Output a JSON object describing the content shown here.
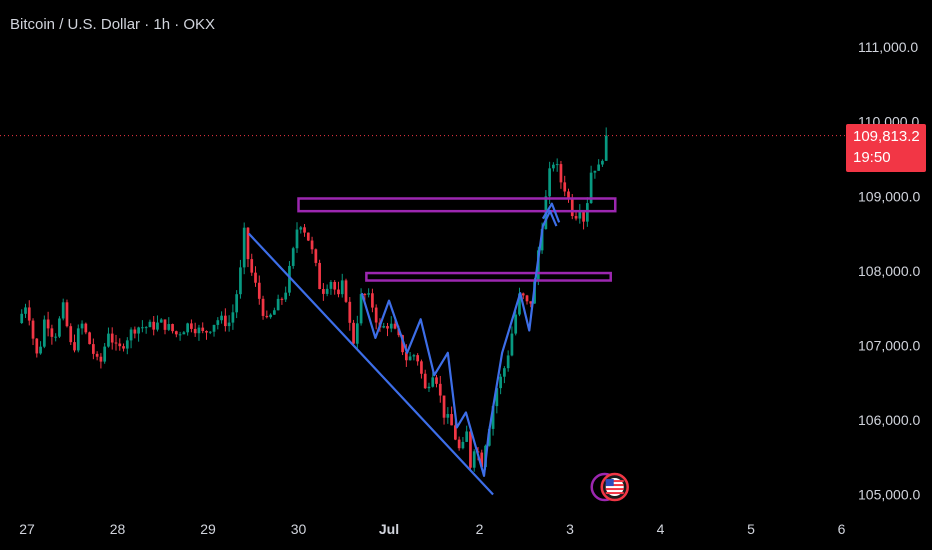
{
  "header": {
    "title": "Bitcoin / U.S. Dollar · 1h · OKX"
  },
  "price_label": {
    "price": "109,813.2",
    "countdown": "19:50"
  },
  "colors": {
    "background": "#000000",
    "up": "#089981",
    "down": "#f23645",
    "trendline": "#3d6ee8",
    "zone": "#9c27b0",
    "axis_text": "#d1d4dc"
  },
  "chart_data": {
    "type": "candlestick",
    "title": "Bitcoin / U.S. Dollar · 1h · OKX",
    "x_ticks": [
      {
        "label": "27",
        "day": 0
      },
      {
        "label": "28",
        "day": 1
      },
      {
        "label": "29",
        "day": 2
      },
      {
        "label": "30",
        "day": 3
      },
      {
        "label": "Jul",
        "day": 4
      },
      {
        "label": "2",
        "day": 5
      },
      {
        "label": "3",
        "day": 6
      },
      {
        "label": "4",
        "day": 7
      },
      {
        "label": "5",
        "day": 8
      },
      {
        "label": "6",
        "day": 9
      }
    ],
    "y_ticks": [
      {
        "label": "111,000.0",
        "value": 111000
      },
      {
        "label": "110,000.0",
        "value": 110000
      },
      {
        "label": "109,000.0",
        "value": 109000
      },
      {
        "label": "108,000.0",
        "value": 108000
      },
      {
        "label": "107,000.0",
        "value": 107000
      },
      {
        "label": "106,000.0",
        "value": 106000
      },
      {
        "label": "105,000.0",
        "value": 105000
      }
    ],
    "ylim": [
      104700,
      111500
    ],
    "last_price": 109813.2,
    "close_anchors": [
      [
        -0.1,
        107300
      ],
      [
        0.0,
        107600
      ],
      [
        0.05,
        107200
      ],
      [
        0.12,
        106800
      ],
      [
        0.2,
        107400
      ],
      [
        0.3,
        107100
      ],
      [
        0.4,
        107500
      ],
      [
        0.5,
        106900
      ],
      [
        0.6,
        107300
      ],
      [
        0.7,
        107000
      ],
      [
        0.8,
        106700
      ],
      [
        0.9,
        107200
      ],
      [
        1.0,
        106900
      ],
      [
        1.1,
        107100
      ],
      [
        1.2,
        107250
      ],
      [
        1.35,
        107250
      ],
      [
        1.5,
        107300
      ],
      [
        1.65,
        107150
      ],
      [
        1.8,
        107300
      ],
      [
        1.95,
        107150
      ],
      [
        2.1,
        107350
      ],
      [
        2.25,
        107300
      ],
      [
        2.35,
        107900
      ],
      [
        2.4,
        108500
      ],
      [
        2.45,
        108100
      ],
      [
        2.55,
        107700
      ],
      [
        2.65,
        107300
      ],
      [
        2.75,
        107500
      ],
      [
        2.85,
        107700
      ],
      [
        2.95,
        108300
      ],
      [
        3.0,
        108700
      ],
      [
        3.05,
        108600
      ],
      [
        3.12,
        108400
      ],
      [
        3.2,
        108000
      ],
      [
        3.25,
        107700
      ],
      [
        3.35,
        107900
      ],
      [
        3.45,
        107600
      ],
      [
        3.5,
        107900
      ],
      [
        3.55,
        107400
      ],
      [
        3.6,
        107000
      ],
      [
        3.7,
        107700
      ],
      [
        3.8,
        107600
      ],
      [
        3.9,
        107200
      ],
      [
        4.0,
        107300
      ],
      [
        4.1,
        107100
      ],
      [
        4.2,
        106800
      ],
      [
        4.3,
        106900
      ],
      [
        4.4,
        106400
      ],
      [
        4.5,
        106700
      ],
      [
        4.6,
        106100
      ],
      [
        4.7,
        105900
      ],
      [
        4.8,
        105500
      ],
      [
        4.85,
        105900
      ],
      [
        4.9,
        105400
      ],
      [
        4.95,
        105700
      ],
      [
        5.02,
        105400
      ],
      [
        5.08,
        105800
      ],
      [
        5.12,
        106000
      ],
      [
        5.18,
        106400
      ],
      [
        5.25,
        106600
      ],
      [
        5.3,
        106800
      ],
      [
        5.38,
        107300
      ],
      [
        5.45,
        107700
      ],
      [
        5.5,
        107600
      ],
      [
        5.55,
        107500
      ],
      [
        5.62,
        107900
      ],
      [
        5.66,
        108400
      ],
      [
        5.7,
        108700
      ],
      [
        5.75,
        109100
      ],
      [
        5.8,
        109500
      ],
      [
        5.85,
        109400
      ],
      [
        5.9,
        109200
      ],
      [
        5.95,
        109100
      ],
      [
        6.0,
        108900
      ],
      [
        6.05,
        108700
      ],
      [
        6.1,
        108900
      ],
      [
        6.15,
        108700
      ],
      [
        6.2,
        109000
      ],
      [
        6.25,
        109500
      ],
      [
        6.3,
        109300
      ],
      [
        6.35,
        109500
      ],
      [
        6.4,
        109813.2
      ]
    ],
    "trendlines": [
      {
        "name": "falling-channel-line",
        "points": [
          [
            2.45,
            108500
          ],
          [
            5.15,
            105000
          ]
        ]
      },
      {
        "name": "zigzag-down",
        "points": [
          [
            3.7,
            107700
          ],
          [
            3.85,
            107100
          ],
          [
            4.0,
            107600
          ],
          [
            4.2,
            106900
          ],
          [
            4.35,
            107350
          ],
          [
            4.5,
            106600
          ],
          [
            4.65,
            106900
          ],
          [
            4.75,
            105900
          ],
          [
            4.85,
            106100
          ],
          [
            5.05,
            105250
          ],
          [
            5.1,
            105800
          ],
          [
            5.25,
            106900
          ],
          [
            5.45,
            107700
          ],
          [
            5.55,
            107200
          ],
          [
            5.62,
            107900
          ],
          [
            5.7,
            108600
          ],
          [
            5.78,
            108800
          ],
          [
            5.85,
            108600
          ]
        ]
      },
      {
        "name": "breakout-arrow",
        "points": [
          [
            5.7,
            108700
          ],
          [
            5.8,
            108900
          ],
          [
            5.88,
            108650
          ]
        ]
      }
    ],
    "zones": [
      {
        "name": "upper-resistance-zone",
        "x0": 3.0,
        "x1": 6.5,
        "y_low": 108800,
        "y_high": 108970
      },
      {
        "name": "lower-resistance-zone",
        "x0": 3.75,
        "x1": 6.45,
        "y_low": 107870,
        "y_high": 107970
      }
    ],
    "price_line": 109813.2,
    "event_marker": {
      "day": 6.45,
      "value": 105100,
      "icon": "us-flag-icon"
    }
  }
}
